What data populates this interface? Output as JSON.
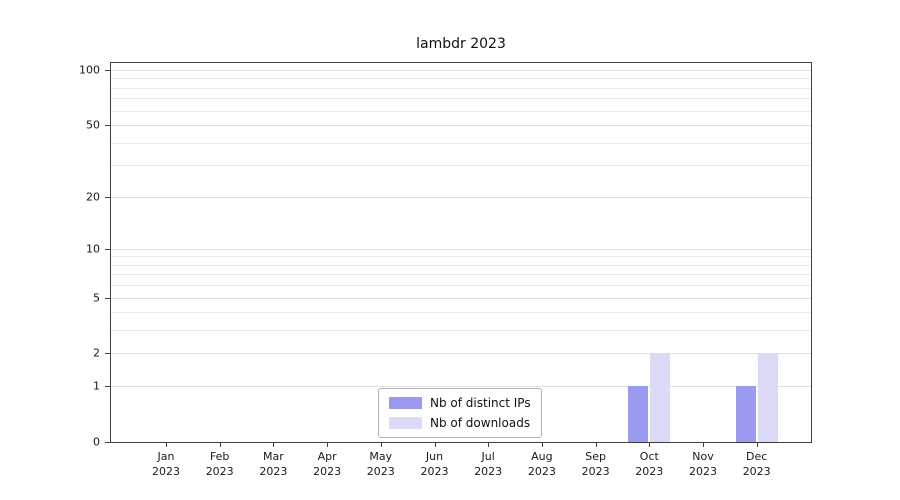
{
  "chart_data": {
    "type": "bar",
    "title": "lambdr 2023",
    "categories": [
      "Jan",
      "Feb",
      "Mar",
      "Apr",
      "May",
      "Jun",
      "Jul",
      "Aug",
      "Sep",
      "Oct",
      "Nov",
      "Dec"
    ],
    "year": "2023",
    "series": [
      {
        "name": "Nb of distinct IPs",
        "color": "#9a9af0",
        "values": [
          0,
          0,
          0,
          0,
          0,
          0,
          0,
          0,
          0,
          1,
          0,
          1
        ]
      },
      {
        "name": "Nb of downloads",
        "color": "#dbdbf8",
        "values": [
          0,
          0,
          0,
          0,
          0,
          0,
          0,
          0,
          0,
          2,
          0,
          2
        ]
      }
    ],
    "yticks": [
      0,
      1,
      2,
      5,
      10,
      20,
      50,
      100
    ],
    "minor_gridlines": [
      3,
      4,
      6,
      7,
      8,
      9,
      30,
      40,
      60,
      70,
      80,
      90
    ],
    "scale": "log1p",
    "ylim": [
      0,
      100
    ],
    "grid": "horizontal",
    "legend_position": "bottom-center"
  }
}
